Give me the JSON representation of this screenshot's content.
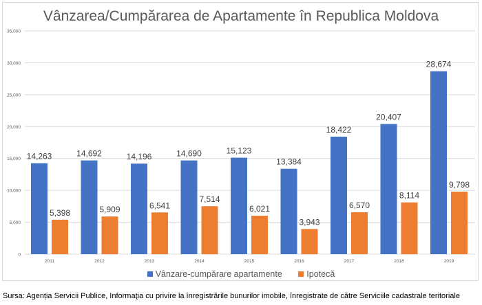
{
  "chart_data": {
    "type": "bar",
    "title": "Vânzarea/Cumpărarea de Apartamente în Republica Moldova",
    "categories": [
      "2011",
      "2012",
      "2013",
      "2014",
      "2015",
      "2016",
      "2017",
      "2018",
      "2019"
    ],
    "series": [
      {
        "name": "Vânzare-cumpărare apartamente",
        "color": "#4472c4",
        "values": [
          14263,
          14692,
          14196,
          14690,
          15123,
          13384,
          18422,
          20407,
          28674
        ],
        "labels": [
          "14,263",
          "14,692",
          "14,196",
          "14,690",
          "15,123",
          "13,384",
          "18,422",
          "20,407",
          "28,674"
        ]
      },
      {
        "name": "Ipotecă",
        "color": "#ed7d31",
        "values": [
          5398,
          5909,
          6541,
          7514,
          6021,
          3943,
          6570,
          8114,
          9798
        ],
        "labels": [
          "5,398",
          "5,909",
          "6,541",
          "7,514",
          "6,021",
          "3,943",
          "6,570",
          "8,114",
          "9,798"
        ]
      }
    ],
    "ylim": [
      0,
      35000
    ],
    "yticks": [
      0,
      5000,
      10000,
      15000,
      20000,
      25000,
      30000,
      35000
    ],
    "ytick_labels": [
      "0",
      "5,000",
      "10,000",
      "15,000",
      "20,000",
      "25,000",
      "30,000",
      "35,000"
    ],
    "grid": true,
    "legend": "bottom"
  },
  "source": "Sursa: Agenția Servicii Publice, Informaţia cu privire la înregistrările bunurilor imobile, înregistrate de către Serviciile cadastrale teritoriale"
}
